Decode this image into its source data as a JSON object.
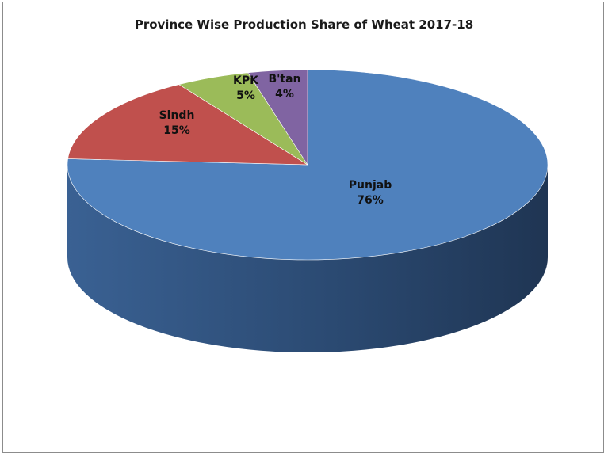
{
  "chart_data": {
    "type": "pie",
    "title": "Province Wise Production Share of Wheat 2017-18",
    "slices": [
      {
        "name": "Punjab",
        "value": 76,
        "label": "76%",
        "color": "#4F81BD",
        "side": "#2E4F78"
      },
      {
        "name": "Sindh",
        "value": 15,
        "label": "15%",
        "color": "#C0504D",
        "side": "#7A2E2C"
      },
      {
        "name": "KPK",
        "value": 5,
        "label": "5%",
        "color": "#9BBB59",
        "side": "#5F7634"
      },
      {
        "name": "B'tan",
        "value": 4,
        "label": "4%",
        "color": "#8064A2",
        "side": "#4D3B63"
      }
    ],
    "legend": false,
    "style": "3d-pie"
  }
}
